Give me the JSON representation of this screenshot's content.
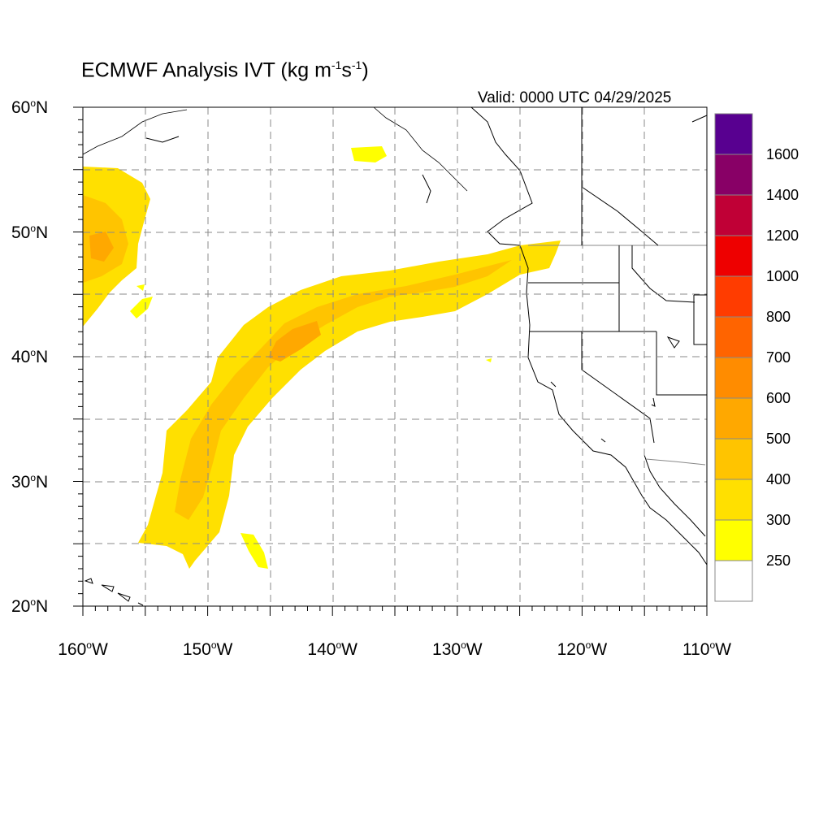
{
  "title": {
    "main": "ECMWF Analysis IVT (kg m",
    "exp1": "-1",
    "mid": "s",
    "exp2": "-1",
    "end": ")"
  },
  "valid_label": "Valid: 0000 UTC 04/29/2025",
  "latitude_labels": [
    {
      "value": "60",
      "suffix": "N"
    },
    {
      "value": "50",
      "suffix": "N"
    },
    {
      "value": "40",
      "suffix": "N"
    },
    {
      "value": "30",
      "suffix": "N"
    },
    {
      "value": "20",
      "suffix": "N"
    }
  ],
  "longitude_labels": [
    {
      "value": "160",
      "suffix": "W"
    },
    {
      "value": "150",
      "suffix": "W"
    },
    {
      "value": "140",
      "suffix": "W"
    },
    {
      "value": "130",
      "suffix": "W"
    },
    {
      "value": "120",
      "suffix": "W"
    },
    {
      "value": "110",
      "suffix": "W"
    }
  ],
  "map_extent": {
    "lon_min": -160,
    "lon_max": -110,
    "lat_min": 20,
    "lat_max": 60
  },
  "colorbar": {
    "labels": [
      "250",
      "300",
      "400",
      "500",
      "600",
      "700",
      "800",
      "1000",
      "1200",
      "1400",
      "1600"
    ],
    "colors": [
      "#ffffff",
      "#ffff00",
      "#ffe000",
      "#ffc400",
      "#ffa800",
      "#ff8c00",
      "#ff6400",
      "#ff3c00",
      "#ee0000",
      "#c00036",
      "#880066",
      "#580090"
    ]
  },
  "colors": {
    "ivt_300": "#ffe000",
    "ivt_400": "#ffc400",
    "ivt_500": "#ffa800",
    "ivt_250": "#ffff00"
  }
}
